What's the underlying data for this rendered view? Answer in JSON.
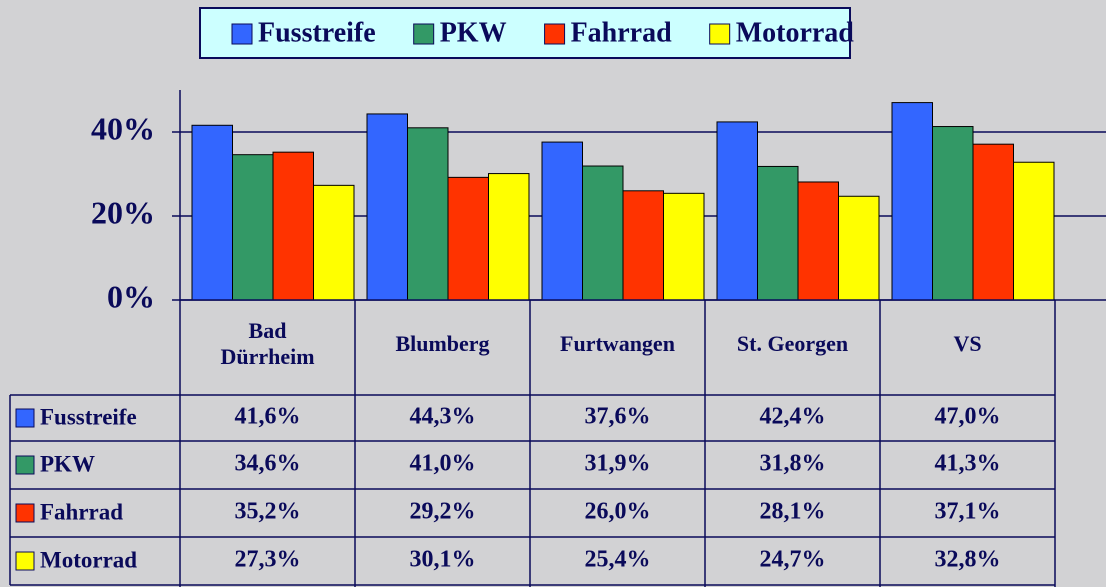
{
  "chart_data": {
    "type": "bar",
    "categories": [
      "Bad Dürrheim",
      "Blumberg",
      "Furtwangen",
      "St. Georgen",
      "VS"
    ],
    "series": [
      {
        "name": "Fusstreife",
        "color": "#3366ff",
        "values": [
          41.6,
          44.3,
          37.6,
          42.4,
          47.0
        ],
        "value_labels": [
          "41,6%",
          "44,3%",
          "37,6%",
          "42,4%",
          "47,0%"
        ]
      },
      {
        "name": "PKW",
        "color": "#339966",
        "values": [
          34.6,
          41.0,
          31.9,
          31.8,
          41.3
        ],
        "value_labels": [
          "34,6%",
          "41,0%",
          "31,9%",
          "31,8%",
          "41,3%"
        ]
      },
      {
        "name": "Fahrrad",
        "color": "#ff3300",
        "values": [
          35.2,
          29.2,
          26.0,
          28.1,
          37.1
        ],
        "value_labels": [
          "35,2%",
          "29,2%",
          "26,0%",
          "28,1%",
          "37,1%"
        ]
      },
      {
        "name": "Motorrad",
        "color": "#ffff00",
        "values": [
          27.3,
          30.1,
          25.4,
          24.7,
          32.8
        ],
        "value_labels": [
          "27,3%",
          "30,1%",
          "25,4%",
          "24,7%",
          "32,8%"
        ]
      }
    ],
    "ylim": [
      0,
      50
    ],
    "yticks": [
      {
        "value": 0,
        "label": "0%"
      },
      {
        "value": 20,
        "label": "20%"
      },
      {
        "value": 40,
        "label": "40%"
      }
    ],
    "grid": true,
    "legend": "top"
  }
}
